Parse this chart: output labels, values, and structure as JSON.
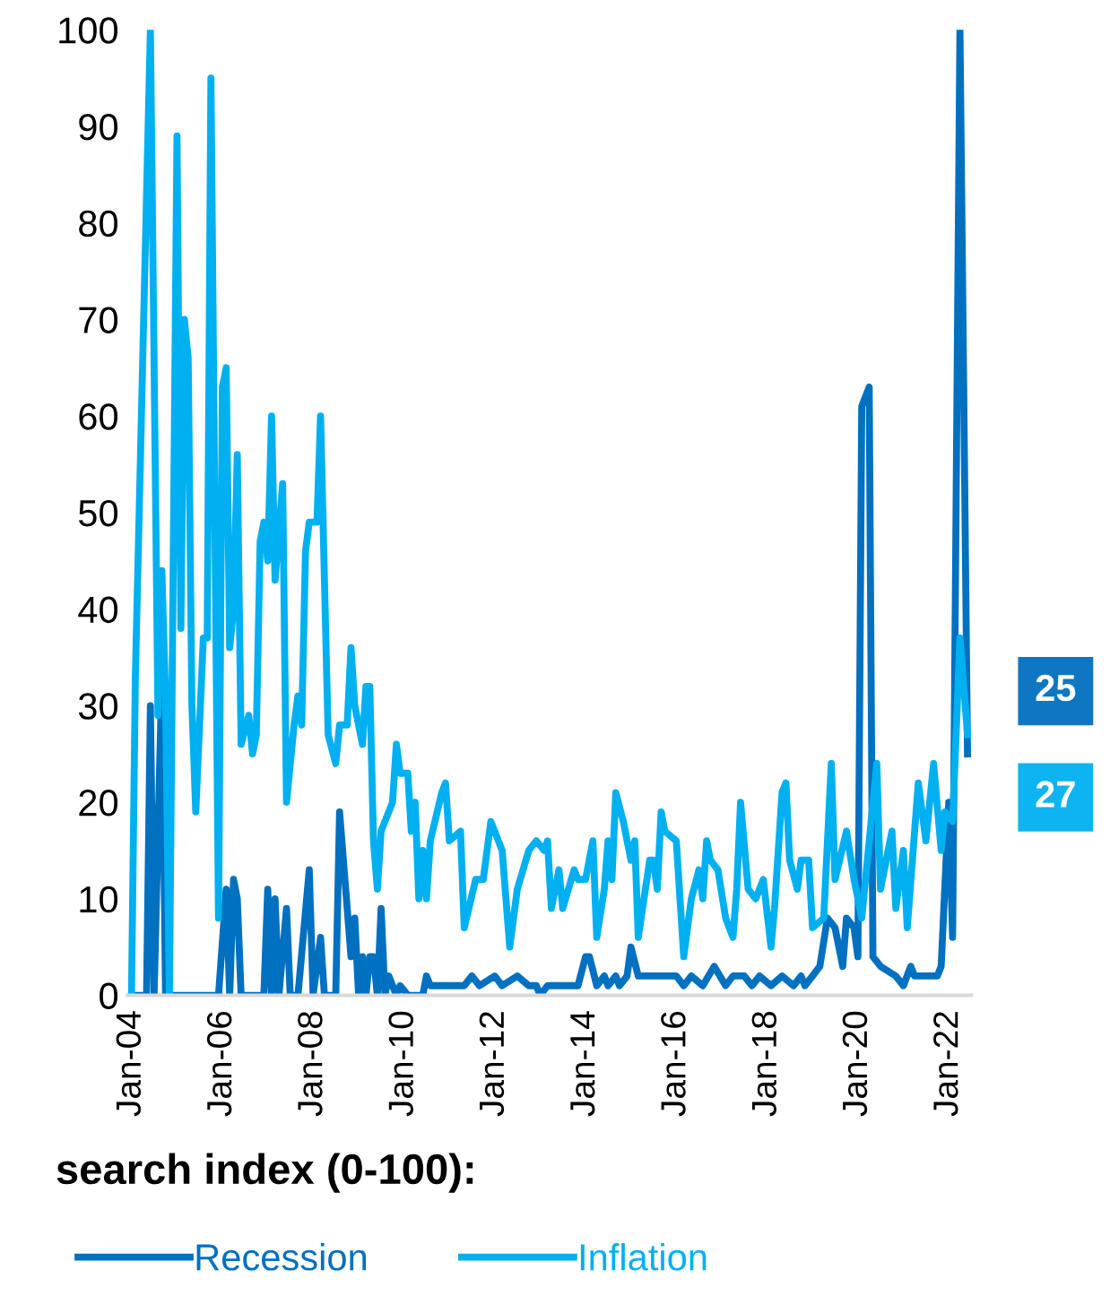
{
  "chart_data": {
    "type": "line",
    "title": "search index (0-100):",
    "legend": "bottom",
    "grid": false,
    "marker": "none",
    "line_style": "solid",
    "xlim": [
      "2003-12",
      "2022-07"
    ],
    "ylim": [
      0,
      100
    ],
    "xticks": [
      {
        "value": "2004-01",
        "label": "Jan-04"
      },
      {
        "value": "2006-01",
        "label": "Jan-06"
      },
      {
        "value": "2008-01",
        "label": "Jan-08"
      },
      {
        "value": "2010-01",
        "label": "Jan-10"
      },
      {
        "value": "2012-01",
        "label": "Jan-12"
      },
      {
        "value": "2014-01",
        "label": "Jan-14"
      },
      {
        "value": "2016-01",
        "label": "Jan-16"
      },
      {
        "value": "2018-01",
        "label": "Jan-18"
      },
      {
        "value": "2020-01",
        "label": "Jan-20"
      },
      {
        "value": "2022-01",
        "label": "Jan-22"
      }
    ],
    "yticks": [
      0,
      10,
      20,
      30,
      40,
      50,
      60,
      70,
      80,
      90,
      100
    ],
    "series": [
      {
        "name": "Recession",
        "color": "#0070c0",
        "x": [
          "2004-01",
          "2004-05",
          "2004-06",
          "2004-07",
          "2004-09",
          "2004-10",
          "2005-12",
          "2006-02",
          "2006-03",
          "2006-04",
          "2006-05",
          "2006-06",
          "2006-12",
          "2007-01",
          "2007-02",
          "2007-03",
          "2007-04",
          "2007-06",
          "2007-07",
          "2007-09",
          "2007-12",
          "2008-01",
          "2008-03",
          "2008-04",
          "2008-07",
          "2008-08",
          "2008-11",
          "2008-12",
          "2009-01",
          "2009-02",
          "2009-03",
          "2009-04",
          "2009-05",
          "2009-06",
          "2009-07",
          "2009-08",
          "2009-09",
          "2009-11",
          "2009-12",
          "2010-02",
          "2010-06",
          "2010-07",
          "2010-08",
          "2011-05",
          "2011-07",
          "2011-09",
          "2012-01",
          "2012-03",
          "2012-07",
          "2012-10",
          "2012-12",
          "2013-01",
          "2013-03",
          "2013-11",
          "2014-01",
          "2014-02",
          "2014-04",
          "2014-06",
          "2014-07",
          "2014-09",
          "2014-10",
          "2014-12",
          "2015-01",
          "2015-03",
          "2015-06",
          "2015-07",
          "2015-08",
          "2016-01",
          "2016-03",
          "2016-05",
          "2016-08",
          "2016-11",
          "2017-02",
          "2017-04",
          "2017-07",
          "2017-09",
          "2017-11",
          "2018-02",
          "2018-05",
          "2018-08",
          "2018-10",
          "2018-11",
          "2019-01",
          "2019-03",
          "2019-05",
          "2019-07",
          "2019-09",
          "2019-10",
          "2019-12",
          "2020-01",
          "2020-02",
          "2020-04",
          "2020-05",
          "2020-07",
          "2020-11",
          "2021-01",
          "2021-03",
          "2021-04",
          "2021-10",
          "2021-11",
          "2022-01",
          "2022-02",
          "2022-04",
          "2022-06"
        ],
        "values": [
          0,
          0,
          30,
          0,
          33,
          0,
          0,
          11,
          0,
          12,
          10,
          0,
          0,
          11,
          0,
          10,
          0,
          9,
          0,
          0,
          13,
          0,
          6,
          0,
          0,
          19,
          4,
          8,
          0,
          4,
          0,
          4,
          4,
          0,
          9,
          0,
          2,
          0,
          1,
          0,
          0,
          2,
          1,
          1,
          2,
          1,
          2,
          1,
          2,
          1,
          1,
          0,
          1,
          1,
          4,
          4,
          1,
          2,
          1,
          2,
          1,
          2,
          5,
          2,
          2,
          2,
          2,
          2,
          1,
          2,
          1,
          3,
          1,
          2,
          2,
          1,
          2,
          1,
          2,
          1,
          2,
          1,
          2,
          3,
          8,
          7,
          3,
          8,
          7,
          4,
          61,
          63,
          4,
          3,
          2,
          1,
          3,
          2,
          2,
          3,
          20,
          6,
          100,
          25
        ],
        "value_labels": [
          null,
          null,
          null,
          null,
          null,
          null,
          null,
          null,
          null,
          null,
          null,
          null,
          null,
          null,
          null,
          null,
          null,
          null,
          null,
          null,
          null,
          null,
          null,
          null,
          null,
          null,
          null,
          null,
          null,
          null,
          null,
          null,
          null,
          null,
          null,
          null,
          null,
          null,
          null,
          null,
          null,
          null,
          null,
          null,
          null,
          null,
          null,
          null,
          null,
          null,
          null,
          null,
          null,
          null,
          null,
          null,
          null,
          null,
          null,
          null,
          null,
          null,
          null,
          null,
          null,
          null,
          null,
          null,
          null,
          null,
          null,
          null,
          null,
          null,
          null,
          null,
          null,
          null,
          null,
          null,
          null,
          null,
          null,
          null,
          null,
          null,
          null,
          null,
          null,
          null,
          null,
          null,
          null,
          null,
          null,
          null,
          null,
          null,
          null,
          null,
          null,
          null,
          null,
          "25"
        ]
      },
      {
        "name": "Inflation",
        "color": "#00b0f0",
        "x": [
          "2004-01",
          "2004-02",
          "2004-06",
          "2004-08",
          "2004-09",
          "2004-10",
          "2004-11",
          "2005-01",
          "2005-02",
          "2005-03",
          "2005-04",
          "2005-05",
          "2005-06",
          "2005-08",
          "2005-09",
          "2005-10",
          "2005-12",
          "2006-01",
          "2006-02",
          "2006-03",
          "2006-04",
          "2006-05",
          "2006-06",
          "2006-08",
          "2006-09",
          "2006-10",
          "2006-11",
          "2006-12",
          "2007-01",
          "2007-02",
          "2007-03",
          "2007-05",
          "2007-06",
          "2007-08",
          "2007-09",
          "2007-10",
          "2007-11",
          "2007-12",
          "2008-02",
          "2008-03",
          "2008-05",
          "2008-07",
          "2008-08",
          "2008-10",
          "2008-11",
          "2008-12",
          "2009-02",
          "2009-03",
          "2009-04",
          "2009-05",
          "2009-06",
          "2009-07",
          "2009-10",
          "2009-11",
          "2009-12",
          "2010-02",
          "2010-03",
          "2010-04",
          "2010-05",
          "2010-06",
          "2010-07",
          "2010-08",
          "2010-11",
          "2010-12",
          "2011-01",
          "2011-04",
          "2011-05",
          "2011-08",
          "2011-10",
          "2011-12",
          "2012-03",
          "2012-05",
          "2012-07",
          "2012-10",
          "2012-12",
          "2013-02",
          "2013-03",
          "2013-04",
          "2013-06",
          "2013-07",
          "2013-10",
          "2013-11",
          "2014-01",
          "2014-03",
          "2014-04",
          "2014-06",
          "2014-07",
          "2014-08",
          "2014-09",
          "2014-11",
          "2015-01",
          "2015-02",
          "2015-03",
          "2015-06",
          "2015-07",
          "2015-08",
          "2015-09",
          "2015-10",
          "2016-01",
          "2016-03",
          "2016-05",
          "2016-07",
          "2016-08",
          "2016-09",
          "2016-10",
          "2016-12",
          "2017-02",
          "2017-04",
          "2017-05",
          "2017-06",
          "2017-08",
          "2017-10",
          "2017-12",
          "2018-02",
          "2018-03",
          "2018-05",
          "2018-06",
          "2018-07",
          "2018-09",
          "2018-10",
          "2018-12",
          "2019-01",
          "2019-04",
          "2019-06",
          "2019-07",
          "2019-10",
          "2019-12",
          "2020-02",
          "2020-06",
          "2020-07",
          "2020-10",
          "2020-11",
          "2021-01",
          "2021-02",
          "2021-05",
          "2021-07",
          "2021-09",
          "2021-11",
          "2021-12",
          "2022-02",
          "2022-04",
          "2022-06"
        ],
        "values": [
          0,
          33,
          100,
          29,
          44,
          31,
          0,
          89,
          38,
          70,
          66,
          30,
          19,
          37,
          37,
          95,
          8,
          63,
          65,
          36,
          40,
          56,
          26,
          29,
          25,
          27,
          47,
          49,
          45,
          60,
          43,
          53,
          20,
          28,
          31,
          28,
          46,
          49,
          49,
          60,
          27,
          24,
          28,
          28,
          36,
          30,
          26,
          32,
          32,
          16,
          11,
          17,
          20,
          26,
          23,
          23,
          17,
          20,
          10,
          15,
          10,
          16,
          21,
          22,
          16,
          17,
          7,
          12,
          12,
          18,
          15,
          5,
          11,
          15,
          16,
          15,
          16,
          9,
          13,
          9,
          13,
          12,
          12,
          16,
          6,
          11,
          16,
          12,
          21,
          18,
          14,
          16,
          6,
          14,
          14,
          11,
          19,
          17,
          16,
          4,
          10,
          13,
          10,
          16,
          14,
          13,
          8,
          6,
          11,
          20,
          11,
          10,
          12,
          5,
          9,
          21,
          22,
          14,
          11,
          14,
          14,
          7,
          8,
          24,
          12,
          17,
          12,
          8,
          24,
          11,
          17,
          9,
          15,
          7,
          22,
          16,
          24,
          15,
          19,
          18,
          37,
          27
        ],
        "value_labels": [
          null,
          null,
          null,
          null,
          null,
          null,
          null,
          null,
          null,
          null,
          null,
          null,
          null,
          null,
          null,
          null,
          null,
          null,
          null,
          null,
          null,
          null,
          null,
          null,
          null,
          null,
          null,
          null,
          null,
          null,
          null,
          null,
          null,
          null,
          null,
          null,
          null,
          null,
          null,
          null,
          null,
          null,
          null,
          null,
          null,
          null,
          null,
          null,
          null,
          null,
          null,
          null,
          null,
          null,
          null,
          null,
          null,
          null,
          null,
          null,
          null,
          null,
          null,
          null,
          null,
          null,
          null,
          null,
          null,
          null,
          null,
          null,
          null,
          null,
          null,
          null,
          null,
          null,
          null,
          null,
          null,
          null,
          null,
          null,
          null,
          null,
          null,
          null,
          null,
          null,
          null,
          null,
          null,
          null,
          null,
          null,
          null,
          null,
          null,
          null,
          null,
          null,
          null,
          null,
          null,
          null,
          null,
          null,
          null,
          null,
          null,
          null,
          null,
          null,
          null,
          null,
          null,
          null,
          null,
          null,
          null,
          null,
          null,
          null,
          null,
          null,
          null,
          null,
          null,
          null,
          null,
          null,
          null,
          null,
          null,
          null,
          null,
          null,
          null,
          null,
          null,
          "27"
        ]
      }
    ]
  }
}
